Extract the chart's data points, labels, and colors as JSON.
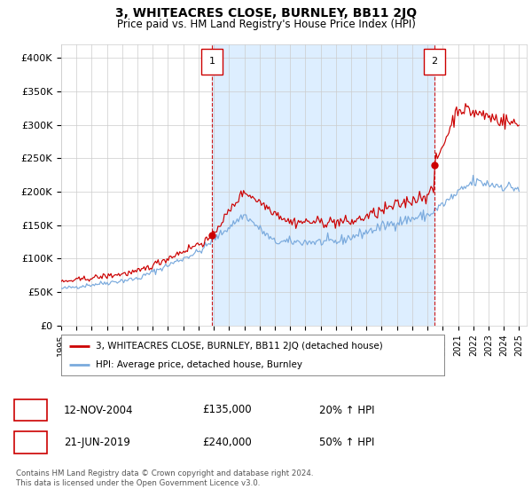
{
  "title": "3, WHITEACRES CLOSE, BURNLEY, BB11 2JQ",
  "subtitle": "Price paid vs. HM Land Registry's House Price Index (HPI)",
  "legend_label_red": "3, WHITEACRES CLOSE, BURNLEY, BB11 2JQ (detached house)",
  "legend_label_blue": "HPI: Average price, detached house, Burnley",
  "transaction1_date": "12-NOV-2004",
  "transaction1_price": "£135,000",
  "transaction1_hpi": "20% ↑ HPI",
  "transaction1_year": 2004.87,
  "transaction1_price_val": 135000,
  "transaction2_date": "21-JUN-2019",
  "transaction2_price": "£240,000",
  "transaction2_hpi": "50% ↑ HPI",
  "transaction2_year": 2019.46,
  "transaction2_price_val": 240000,
  "footer": "Contains HM Land Registry data © Crown copyright and database right 2024.\nThis data is licensed under the Open Government Licence v3.0.",
  "ylim_min": 0,
  "ylim_max": 420000,
  "yticks": [
    0,
    50000,
    100000,
    150000,
    200000,
    250000,
    300000,
    350000,
    400000
  ],
  "ytick_labels": [
    "£0",
    "£50K",
    "£100K",
    "£150K",
    "£200K",
    "£250K",
    "£300K",
    "£350K",
    "£400K"
  ],
  "red_color": "#cc0000",
  "blue_color": "#7aaadd",
  "vline_color": "#cc0000",
  "grid_color": "#cccccc",
  "shade_color": "#ddeeff",
  "background_color": "#ffffff",
  "plot_bg_color": "#ffffff",
  "xlim_min": 1995,
  "xlim_max": 2025.5,
  "xtick_start": 1995,
  "xtick_end": 2025
}
